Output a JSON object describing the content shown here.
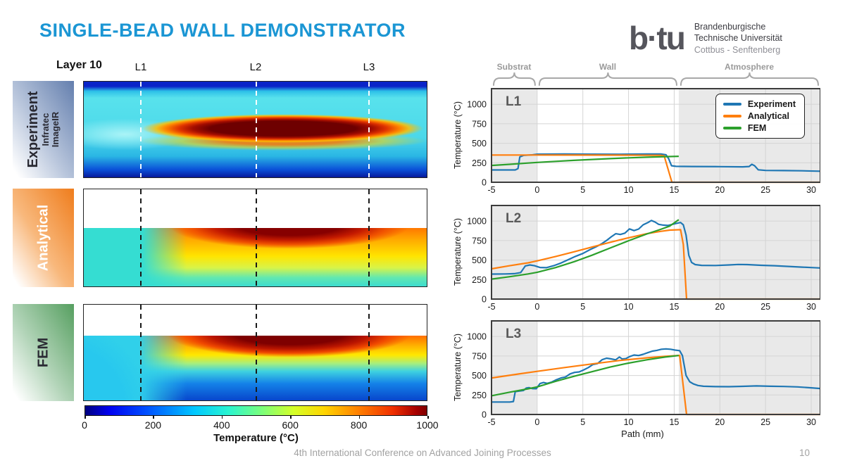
{
  "header": {
    "title": "SINGLE-BEAD WALL DEMONSTRATOR",
    "logo": {
      "mark": "b·tu",
      "line1": "Brandenburgische",
      "line2": "Technische Universität",
      "line3": "Cottbus - Senftenberg"
    }
  },
  "left": {
    "layer_label": "Layer 10",
    "line_labels": [
      "L1",
      "L2",
      "L3"
    ],
    "rows": [
      {
        "label": "Experiment",
        "sub1": "Infratec",
        "sub2": "ImageIR"
      },
      {
        "label": "Analytical"
      },
      {
        "label": "FEM"
      }
    ],
    "colorbar": {
      "ticks": [
        "0",
        "200",
        "400",
        "600",
        "800",
        "1000"
      ],
      "label": "Temperature (°C)",
      "colormap": "jet"
    }
  },
  "regions": {
    "labels": [
      "Substrat",
      "Wall",
      "Atmosphere"
    ],
    "spans_mm": [
      [
        -5,
        0
      ],
      [
        0,
        15.5
      ],
      [
        15.5,
        31
      ]
    ]
  },
  "legend": {
    "items": [
      {
        "label": "Experiment",
        "color": "#1f77b4"
      },
      {
        "label": "Analytical",
        "color": "#ff7f0e"
      },
      {
        "label": "FEM",
        "color": "#2ca02c"
      }
    ]
  },
  "footer": {
    "conference": "4th International Conference on Advanced Joining Processes",
    "page": "10"
  },
  "chart_data": [
    {
      "type": "line",
      "tag": "L1",
      "ylabel": "Temperature (°C)",
      "xlabel": "",
      "xlim": [
        -5,
        31
      ],
      "ylim": [
        0,
        1200
      ],
      "xticks": [
        -5,
        0,
        5,
        10,
        15,
        20,
        25,
        30
      ],
      "yticks": [
        0,
        250,
        500,
        750,
        1000
      ],
      "shaded_x": [
        [
          -5,
          0
        ],
        [
          15.5,
          31
        ]
      ],
      "grid": true,
      "legend_position": "upper right",
      "series": [
        {
          "name": "Experiment",
          "color": "#1f77b4",
          "points": [
            [
              -5,
              158
            ],
            [
              -2.4,
              158
            ],
            [
              -2.1,
              175
            ],
            [
              -1.9,
              325
            ],
            [
              -1.5,
              345
            ],
            [
              -0.5,
              352
            ],
            [
              0,
              360
            ],
            [
              3,
              362
            ],
            [
              6,
              360
            ],
            [
              9,
              359
            ],
            [
              12,
              362
            ],
            [
              13.6,
              362
            ],
            [
              14.1,
              352
            ],
            [
              14.4,
              300
            ],
            [
              14.7,
              212
            ],
            [
              15.2,
              204
            ],
            [
              17,
              202
            ],
            [
              20,
              200
            ],
            [
              22.5,
              198
            ],
            [
              23.2,
              202
            ],
            [
              23.5,
              230
            ],
            [
              23.8,
              212
            ],
            [
              24.2,
              160
            ],
            [
              25,
              152
            ],
            [
              27,
              150
            ],
            [
              29,
              147
            ],
            [
              31,
              142
            ]
          ]
        },
        {
          "name": "Analytical",
          "color": "#ff7f0e",
          "points": [
            [
              -5,
              349
            ],
            [
              0,
              349
            ],
            [
              5,
              348
            ],
            [
              10,
              347
            ],
            [
              13.5,
              346
            ],
            [
              13.9,
              338
            ],
            [
              14.75,
              0
            ],
            [
              31,
              0
            ]
          ]
        },
        {
          "name": "FEM",
          "color": "#2ca02c",
          "points": [
            [
              -5,
              216
            ],
            [
              -3,
              230
            ],
            [
              -1,
              246
            ],
            [
              0,
              254
            ],
            [
              2,
              268
            ],
            [
              4,
              281
            ],
            [
              6,
              292
            ],
            [
              8,
              303
            ],
            [
              10,
              313
            ],
            [
              12,
              321
            ],
            [
              14,
              328
            ],
            [
              15.5,
              333
            ]
          ]
        }
      ]
    },
    {
      "type": "line",
      "tag": "L2",
      "ylabel": "Temperature (°C)",
      "xlabel": "",
      "xlim": [
        -5,
        31
      ],
      "ylim": [
        0,
        1200
      ],
      "xticks": [
        -5,
        0,
        5,
        10,
        15,
        20,
        25,
        30
      ],
      "yticks": [
        0,
        250,
        500,
        750,
        1000
      ],
      "shaded_x": [
        [
          -5,
          0
        ],
        [
          15.5,
          31
        ]
      ],
      "grid": true,
      "series": [
        {
          "name": "Experiment",
          "color": "#1f77b4",
          "points": [
            [
              -5,
              320
            ],
            [
              -3.5,
              322
            ],
            [
              -2.5,
              326
            ],
            [
              -1.8,
              340
            ],
            [
              -1.3,
              425
            ],
            [
              -0.8,
              438
            ],
            [
              -0.3,
              428
            ],
            [
              0.3,
              405
            ],
            [
              1,
              402
            ],
            [
              1.8,
              428
            ],
            [
              2.6,
              462
            ],
            [
              3.4,
              505
            ],
            [
              4.2,
              548
            ],
            [
              5,
              585
            ],
            [
              5.8,
              635
            ],
            [
              6.4,
              668
            ],
            [
              7,
              705
            ],
            [
              7.6,
              752
            ],
            [
              8.1,
              798
            ],
            [
              8.6,
              838
            ],
            [
              9.1,
              828
            ],
            [
              9.6,
              845
            ],
            [
              10.1,
              900
            ],
            [
              10.6,
              878
            ],
            [
              11.1,
              898
            ],
            [
              11.6,
              952
            ],
            [
              12.1,
              980
            ],
            [
              12.5,
              1008
            ],
            [
              12.9,
              988
            ],
            [
              13.3,
              958
            ],
            [
              13.8,
              948
            ],
            [
              14.3,
              944
            ],
            [
              14.8,
              958
            ],
            [
              15.3,
              972
            ],
            [
              15.7,
              982
            ],
            [
              16,
              952
            ],
            [
              16.3,
              820
            ],
            [
              16.6,
              560
            ],
            [
              16.9,
              470
            ],
            [
              17.3,
              442
            ],
            [
              18,
              432
            ],
            [
              19.5,
              430
            ],
            [
              21,
              438
            ],
            [
              22,
              444
            ],
            [
              23,
              442
            ],
            [
              24.5,
              433
            ],
            [
              26,
              428
            ],
            [
              27.5,
              419
            ],
            [
              29,
              410
            ],
            [
              30,
              404
            ],
            [
              31,
              399
            ]
          ]
        },
        {
          "name": "Analytical",
          "color": "#ff7f0e",
          "points": [
            [
              -5,
              388
            ],
            [
              -3,
              428
            ],
            [
              -1,
              465
            ],
            [
              0,
              490
            ],
            [
              2,
              545
            ],
            [
              4,
              605
            ],
            [
              6,
              667
            ],
            [
              8,
              728
            ],
            [
              10,
              786
            ],
            [
              12,
              838
            ],
            [
              13.5,
              868
            ],
            [
              14.5,
              884
            ],
            [
              15.7,
              890
            ],
            [
              16,
              700
            ],
            [
              16.35,
              0
            ],
            [
              31,
              0
            ]
          ]
        },
        {
          "name": "FEM",
          "color": "#2ca02c",
          "points": [
            [
              -5,
              256
            ],
            [
              -3,
              287
            ],
            [
              -1,
              322
            ],
            [
              0,
              344
            ],
            [
              2,
              403
            ],
            [
              4,
              477
            ],
            [
              6,
              562
            ],
            [
              8,
              655
            ],
            [
              10,
              748
            ],
            [
              12,
              835
            ],
            [
              13.5,
              893
            ],
            [
              14.5,
              936
            ],
            [
              15.5,
              1018
            ]
          ]
        }
      ]
    },
    {
      "type": "line",
      "tag": "L3",
      "ylabel": "Temperature (°C)",
      "xlabel": "Path (mm)",
      "xlim": [
        -5,
        31
      ],
      "ylim": [
        0,
        1200
      ],
      "xticks": [
        -5,
        0,
        5,
        10,
        15,
        20,
        25,
        30
      ],
      "yticks": [
        0,
        250,
        500,
        750,
        1000
      ],
      "shaded_x": [
        [
          -5,
          0
        ],
        [
          15.5,
          31
        ]
      ],
      "grid": true,
      "series": [
        {
          "name": "Experiment",
          "color": "#1f77b4",
          "points": [
            [
              -5,
              160
            ],
            [
              -3,
              160
            ],
            [
              -2.6,
              166
            ],
            [
              -2.4,
              292
            ],
            [
              -2,
              300
            ],
            [
              -1.5,
              308
            ],
            [
              -1.2,
              338
            ],
            [
              -0.9,
              345
            ],
            [
              -0.5,
              331
            ],
            [
              -0.1,
              330
            ],
            [
              0.3,
              396
            ],
            [
              0.7,
              410
            ],
            [
              1.1,
              399
            ],
            [
              1.6,
              416
            ],
            [
              2.1,
              446
            ],
            [
              2.6,
              468
            ],
            [
              3.1,
              481
            ],
            [
              3.6,
              521
            ],
            [
              4.1,
              540
            ],
            [
              4.6,
              546
            ],
            [
              5.1,
              572
            ],
            [
              5.6,
              602
            ],
            [
              6.1,
              641
            ],
            [
              6.6,
              652
            ],
            [
              7.1,
              702
            ],
            [
              7.6,
              722
            ],
            [
              8.1,
              713
            ],
            [
              8.6,
              701
            ],
            [
              9,
              736
            ],
            [
              9.3,
              712
            ],
            [
              9.7,
              716
            ],
            [
              10.1,
              742
            ],
            [
              10.6,
              762
            ],
            [
              11.1,
              756
            ],
            [
              11.6,
              771
            ],
            [
              12.1,
              792
            ],
            [
              12.6,
              812
            ],
            [
              13.1,
              822
            ],
            [
              13.6,
              836
            ],
            [
              14.1,
              841
            ],
            [
              14.6,
              836
            ],
            [
              15.1,
              826
            ],
            [
              15.6,
              818
            ],
            [
              15.9,
              755
            ],
            [
              16.3,
              500
            ],
            [
              16.7,
              420
            ],
            [
              17.1,
              392
            ],
            [
              17.6,
              372
            ],
            [
              18.2,
              362
            ],
            [
              19.5,
              357
            ],
            [
              21,
              356
            ],
            [
              22.5,
              361
            ],
            [
              24,
              366
            ],
            [
              25.5,
              362
            ],
            [
              27,
              359
            ],
            [
              28.5,
              354
            ],
            [
              30,
              342
            ],
            [
              31,
              333
            ]
          ]
        },
        {
          "name": "Analytical",
          "color": "#ff7f0e",
          "points": [
            [
              -5,
              468
            ],
            [
              -2,
              520
            ],
            [
              0,
              553
            ],
            [
              3,
              602
            ],
            [
              6,
              648
            ],
            [
              9,
              692
            ],
            [
              12,
              726
            ],
            [
              14,
              746
            ],
            [
              15.6,
              757
            ],
            [
              16.35,
              0
            ],
            [
              31,
              0
            ]
          ]
        },
        {
          "name": "FEM",
          "color": "#2ca02c",
          "points": [
            [
              -5,
              240
            ],
            [
              -3,
              286
            ],
            [
              -1,
              329
            ],
            [
              0,
              354
            ],
            [
              2,
              424
            ],
            [
              4,
              489
            ],
            [
              6,
              549
            ],
            [
              8,
              608
            ],
            [
              10,
              659
            ],
            [
              12,
              701
            ],
            [
              14,
              736
            ],
            [
              15.5,
              756
            ]
          ]
        }
      ]
    }
  ]
}
